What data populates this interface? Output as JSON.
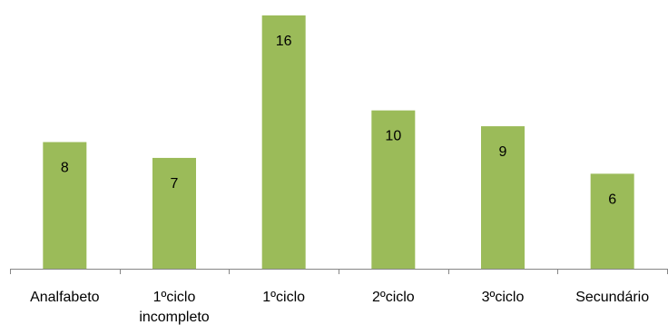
{
  "chart_data": {
    "type": "bar",
    "categories": [
      [
        "Analfabeto"
      ],
      [
        "1ºciclo",
        "incompleto"
      ],
      [
        "1ºciclo"
      ],
      [
        "2ºciclo"
      ],
      [
        "3ºciclo"
      ],
      [
        "Secundário"
      ]
    ],
    "values": [
      8,
      7,
      16,
      10,
      9,
      6
    ],
    "title": "",
    "xlabel": "",
    "ylabel": "",
    "ylim": [
      0,
      16
    ],
    "grid": false,
    "legend": "none",
    "data_labels": true,
    "colors": {
      "bar": "#9bbb59",
      "axis": "#868686",
      "text": "#000000"
    }
  }
}
